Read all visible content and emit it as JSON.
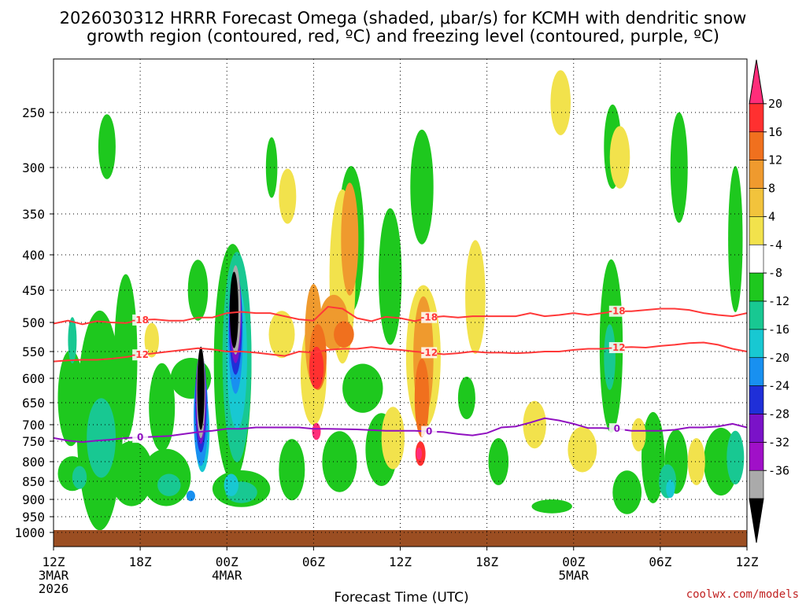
{
  "chart_data": {
    "type": "heatmap",
    "title_line1": "2026030312 HRRR Forecast Omega (shaded, μbar/s) for KCMH with dendritic snow",
    "title_line2": "growth region (contoured, red, ºC) and freezing level (contoured, purple, ºC)",
    "xlabel": "Forecast Time (UTC)",
    "credit": "coolwx.com/models",
    "y_axis": {
      "type": "pressure (hPa)",
      "ticks": [
        250,
        300,
        350,
        400,
        450,
        500,
        550,
        600,
        650,
        700,
        750,
        800,
        850,
        900,
        950,
        1000
      ],
      "tick_labels": [
        "250",
        "300",
        "350",
        "400",
        "450",
        "500",
        "550",
        "600",
        "650",
        "700",
        "750",
        "800",
        "850",
        "900",
        "950",
        "1000"
      ],
      "range": [
        1000,
        200
      ]
    },
    "x_axis": {
      "range_hours": [
        0,
        48
      ],
      "ticks": [
        {
          "hour": 0,
          "label": "12Z",
          "date": "3MAR",
          "year": "2026"
        },
        {
          "hour": 6,
          "label": "18Z",
          "date": "",
          "year": ""
        },
        {
          "hour": 12,
          "label": "00Z",
          "date": "4MAR",
          "year": ""
        },
        {
          "hour": 18,
          "label": "06Z",
          "date": "",
          "year": ""
        },
        {
          "hour": 24,
          "label": "12Z",
          "date": "",
          "year": ""
        },
        {
          "hour": 30,
          "label": "18Z",
          "date": "",
          "year": ""
        },
        {
          "hour": 36,
          "label": "00Z",
          "date": "5MAR",
          "year": ""
        },
        {
          "hour": 42,
          "label": "06Z",
          "date": "",
          "year": ""
        },
        {
          "hour": 48,
          "label": "12Z",
          "date": "",
          "year": ""
        }
      ]
    },
    "colorbar": {
      "labels": [
        "20",
        "16",
        "12",
        "8",
        "4",
        "-4",
        "-8",
        "-12",
        "-16",
        "-20",
        "-24",
        "-28",
        "-32",
        "-36"
      ],
      "colors": [
        "#ff2d7a",
        "#ff3030",
        "#f0701e",
        "#ef9a2e",
        "#f2c33c",
        "#f2e24c",
        "#ffffff",
        "#1ec81e",
        "#18c892",
        "#18c8d2",
        "#1890f0",
        "#1f2fd8",
        "#7a12c8",
        "#a010c8",
        "#aaaaaa",
        "#000000"
      ]
    },
    "contours": [
      {
        "name": "-18 C isotherm",
        "label": "-18",
        "color": "#ff3838",
        "hours": [
          0,
          1,
          2,
          3,
          4,
          5,
          6,
          7,
          8,
          9,
          10,
          11,
          12,
          13,
          14,
          15,
          16,
          17,
          18,
          19,
          20,
          21,
          22,
          23,
          24,
          25,
          26,
          27,
          28,
          29,
          30,
          31,
          32,
          33,
          34,
          35,
          36,
          37,
          38,
          39,
          40,
          41,
          42,
          43,
          44,
          45,
          46,
          47,
          48
        ],
        "pressure": [
          502,
          497,
          503,
          498,
          500,
          501,
          496,
          495,
          497,
          497,
          492,
          492,
          485,
          483,
          485,
          485,
          490,
          495,
          497,
          475,
          478,
          493,
          498,
          491,
          493,
          498,
          492,
          490,
          492,
          490,
          490,
          490,
          490,
          485,
          490,
          488,
          485,
          488,
          485,
          482,
          482,
          480,
          478,
          478,
          480,
          485,
          488,
          490,
          485
        ]
      },
      {
        "name": "-12 C isotherm",
        "label": "-12",
        "color": "#ff3838",
        "hours": [
          0,
          1,
          2,
          3,
          4,
          5,
          6,
          7,
          8,
          9,
          10,
          11,
          12,
          13,
          14,
          15,
          16,
          17,
          18,
          19,
          20,
          21,
          22,
          23,
          24,
          25,
          26,
          27,
          28,
          29,
          30,
          31,
          32,
          33,
          34,
          35,
          36,
          37,
          38,
          39,
          40,
          41,
          42,
          43,
          44,
          45,
          46,
          47,
          48
        ],
        "pressure": [
          568,
          566,
          565,
          565,
          563,
          560,
          556,
          553,
          550,
          547,
          544,
          546,
          550,
          550,
          552,
          555,
          558,
          550,
          552,
          547,
          545,
          545,
          542,
          545,
          547,
          550,
          552,
          555,
          553,
          550,
          552,
          552,
          553,
          552,
          550,
          550,
          547,
          545,
          545,
          543,
          542,
          543,
          540,
          538,
          535,
          534,
          538,
          545,
          550
        ]
      },
      {
        "name": "0 C freezing level",
        "label": "0",
        "color": "#9010c0",
        "hours": [
          0,
          1,
          2,
          3,
          4,
          5,
          6,
          7,
          8,
          9,
          10,
          11,
          12,
          13,
          14,
          15,
          16,
          17,
          18,
          19,
          20,
          21,
          22,
          23,
          24,
          25,
          26,
          27,
          28,
          29,
          30,
          31,
          32,
          33,
          34,
          35,
          36,
          37,
          38,
          39,
          40,
          41,
          42,
          43,
          44,
          45,
          46,
          47,
          48
        ],
        "pressure": [
          740,
          748,
          752,
          748,
          745,
          740,
          738,
          736,
          734,
          728,
          722,
          718,
          712,
          712,
          708,
          708,
          708,
          708,
          712,
          712,
          713,
          714,
          716,
          718,
          718,
          718,
          720,
          722,
          728,
          732,
          725,
          708,
          705,
          695,
          685,
          690,
          698,
          710,
          710,
          712,
          718,
          718,
          718,
          715,
          708,
          708,
          705,
          698,
          708
        ]
      }
    ],
    "shading_blobs": [
      {
        "t": 1.2,
        "p": 640,
        "rt": 0.9,
        "rp": 210,
        "level": -8
      },
      {
        "t": 1.3,
        "p": 830,
        "rt": 1.0,
        "rp": 90,
        "level": -8
      },
      {
        "t": 3.2,
        "p": 690,
        "rt": 1.6,
        "rp": 480,
        "level": -8
      },
      {
        "t": 3.7,
        "p": 280,
        "rt": 0.6,
        "rp": 60,
        "level": -8
      },
      {
        "t": 5.0,
        "p": 560,
        "rt": 0.8,
        "rp": 300,
        "level": -8
      },
      {
        "t": 5.4,
        "p": 830,
        "rt": 1.5,
        "rp": 170,
        "level": -8
      },
      {
        "t": 7.5,
        "p": 660,
        "rt": 0.9,
        "rp": 200,
        "level": -8
      },
      {
        "t": 7.8,
        "p": 840,
        "rt": 1.7,
        "rp": 150,
        "level": -8
      },
      {
        "t": 10.0,
        "p": 450,
        "rt": 0.7,
        "rp": 90,
        "level": -8
      },
      {
        "t": 9.5,
        "p": 600,
        "rt": 1.4,
        "rp": 80,
        "level": -8
      },
      {
        "t": 12.4,
        "p": 570,
        "rt": 1.3,
        "rp": 430,
        "level": -8
      },
      {
        "t": 13.0,
        "p": 870,
        "rt": 2.0,
        "rp": 100,
        "level": -8
      },
      {
        "t": 15.1,
        "p": 300,
        "rt": 0.4,
        "rp": 60,
        "level": -8
      },
      {
        "t": 16.5,
        "p": 820,
        "rt": 0.9,
        "rp": 160,
        "level": -8
      },
      {
        "t": 19.8,
        "p": 800,
        "rt": 1.2,
        "rp": 160,
        "level": -8
      },
      {
        "t": 20.6,
        "p": 380,
        "rt": 0.9,
        "rp": 180,
        "level": -8
      },
      {
        "t": 21.4,
        "p": 620,
        "rt": 1.4,
        "rp": 100,
        "level": -8
      },
      {
        "t": 22.7,
        "p": 770,
        "rt": 1.1,
        "rp": 190,
        "level": -8
      },
      {
        "t": 23.3,
        "p": 430,
        "rt": 0.8,
        "rp": 190,
        "level": -8
      },
      {
        "t": 25.5,
        "p": 320,
        "rt": 0.8,
        "rp": 120,
        "level": -8
      },
      {
        "t": 28.6,
        "p": 640,
        "rt": 0.6,
        "rp": 90,
        "level": -8
      },
      {
        "t": 30.8,
        "p": 800,
        "rt": 0.7,
        "rp": 120,
        "level": -8
      },
      {
        "t": 34.5,
        "p": 920,
        "rt": 1.4,
        "rp": 40,
        "level": -8
      },
      {
        "t": 38.6,
        "p": 540,
        "rt": 0.8,
        "rp": 300,
        "level": -8
      },
      {
        "t": 38.7,
        "p": 280,
        "rt": 0.6,
        "rp": 80,
        "level": -8
      },
      {
        "t": 39.7,
        "p": 880,
        "rt": 1.0,
        "rp": 120,
        "level": -8
      },
      {
        "t": 41.5,
        "p": 790,
        "rt": 0.8,
        "rp": 240,
        "level": -8
      },
      {
        "t": 43.1,
        "p": 800,
        "rt": 0.8,
        "rp": 170,
        "level": -8
      },
      {
        "t": 43.3,
        "p": 300,
        "rt": 0.6,
        "rp": 110,
        "level": -8
      },
      {
        "t": 47.2,
        "p": 380,
        "rt": 0.5,
        "rp": 180,
        "level": -8
      },
      {
        "t": 46.2,
        "p": 800,
        "rt": 1.2,
        "rp": 180,
        "level": -8
      },
      {
        "t": 12.7,
        "p": 560,
        "rt": 1.0,
        "rp": 380,
        "level": -12
      },
      {
        "t": 3.3,
        "p": 740,
        "rt": 1.0,
        "rp": 200,
        "level": -12
      },
      {
        "t": 1.8,
        "p": 840,
        "rt": 0.5,
        "rp": 60,
        "level": -12
      },
      {
        "t": 8.0,
        "p": 860,
        "rt": 0.8,
        "rp": 60,
        "level": -12
      },
      {
        "t": 13.0,
        "p": 880,
        "rt": 1.1,
        "rp": 60,
        "level": -12
      },
      {
        "t": 38.5,
        "p": 560,
        "rt": 0.4,
        "rp": 120,
        "level": -12
      },
      {
        "t": 42.5,
        "p": 850,
        "rt": 0.6,
        "rp": 90,
        "level": -12
      },
      {
        "t": 47.2,
        "p": 790,
        "rt": 0.6,
        "rp": 140,
        "level": -12
      },
      {
        "t": 1.3,
        "p": 530,
        "rt": 0.3,
        "rp": 80,
        "level": -12
      },
      {
        "t": 10.3,
        "p": 720,
        "rt": 0.5,
        "rp": 200,
        "level": -16
      },
      {
        "t": 12.7,
        "p": 560,
        "rt": 0.7,
        "rp": 260,
        "level": -16
      },
      {
        "t": 12.3,
        "p": 860,
        "rt": 0.5,
        "rp": 60,
        "level": -16
      },
      {
        "t": 42.7,
        "p": 870,
        "rt": 0.3,
        "rp": 50,
        "level": -16
      },
      {
        "t": 10.2,
        "p": 680,
        "rt": 0.5,
        "rp": 230,
        "level": -20
      },
      {
        "t": 12.6,
        "p": 520,
        "rt": 0.5,
        "rp": 200,
        "level": -20
      },
      {
        "t": 9.5,
        "p": 890,
        "rt": 0.3,
        "rp": 30,
        "level": -20
      },
      {
        "t": 10.2,
        "p": 650,
        "rt": 0.4,
        "rp": 220,
        "level": -24
      },
      {
        "t": 12.6,
        "p": 500,
        "rt": 0.45,
        "rp": 170,
        "level": -24
      },
      {
        "t": 12.6,
        "p": 490,
        "rt": 0.4,
        "rp": 150,
        "level": -28
      },
      {
        "t": 10.2,
        "p": 640,
        "rt": 0.35,
        "rp": 200,
        "level": -28
      },
      {
        "t": 12.6,
        "p": 480,
        "rt": 0.35,
        "rp": 140,
        "level": -32
      },
      {
        "t": 10.2,
        "p": 630,
        "rt": 0.3,
        "rp": 190,
        "level": -32
      },
      {
        "t": 10.2,
        "p": 620,
        "rt": 0.25,
        "rp": 170,
        "level": -36
      },
      {
        "t": 12.5,
        "p": 480,
        "rt": 0.3,
        "rp": 120,
        "level": -36
      },
      {
        "t": 6.8,
        "p": 530,
        "rt": 0.5,
        "rp": 60,
        "level": 4
      },
      {
        "t": 15.8,
        "p": 520,
        "rt": 0.9,
        "rp": 80,
        "level": 4
      },
      {
        "t": 18.0,
        "p": 590,
        "rt": 0.9,
        "rp": 200,
        "level": 4
      },
      {
        "t": 20.0,
        "p": 430,
        "rt": 0.9,
        "rp": 240,
        "level": 4
      },
      {
        "t": 25.6,
        "p": 560,
        "rt": 1.2,
        "rp": 260,
        "level": 4
      },
      {
        "t": 23.5,
        "p": 740,
        "rt": 0.8,
        "rp": 160,
        "level": 4
      },
      {
        "t": 29.2,
        "p": 460,
        "rt": 0.7,
        "rp": 170,
        "level": 4
      },
      {
        "t": 33.3,
        "p": 700,
        "rt": 0.8,
        "rp": 120,
        "level": 4
      },
      {
        "t": 35.1,
        "p": 240,
        "rt": 0.7,
        "rp": 60,
        "level": 4
      },
      {
        "t": 36.6,
        "p": 770,
        "rt": 1.0,
        "rp": 120,
        "level": 4
      },
      {
        "t": 39.2,
        "p": 290,
        "rt": 0.7,
        "rp": 60,
        "level": 4
      },
      {
        "t": 40.5,
        "p": 730,
        "rt": 0.5,
        "rp": 90,
        "level": 4
      },
      {
        "t": 44.5,
        "p": 800,
        "rt": 0.6,
        "rp": 120,
        "level": 4
      },
      {
        "t": 16.2,
        "p": 330,
        "rt": 0.6,
        "rp": 60,
        "level": 4
      },
      {
        "t": 18.0,
        "p": 520,
        "rt": 0.6,
        "rp": 170,
        "level": 8
      },
      {
        "t": 19.4,
        "p": 500,
        "rt": 1.0,
        "rp": 90,
        "level": 8
      },
      {
        "t": 20.5,
        "p": 380,
        "rt": 0.6,
        "rp": 140,
        "level": 8
      },
      {
        "t": 25.6,
        "p": 560,
        "rt": 0.7,
        "rp": 220,
        "level": 8
      },
      {
        "t": 18.3,
        "p": 560,
        "rt": 0.6,
        "rp": 120,
        "level": 12
      },
      {
        "t": 20.1,
        "p": 520,
        "rt": 0.7,
        "rp": 45,
        "level": 12
      },
      {
        "t": 25.5,
        "p": 640,
        "rt": 0.5,
        "rp": 170,
        "level": 12
      },
      {
        "t": 18.2,
        "p": 580,
        "rt": 0.5,
        "rp": 80,
        "level": 16
      },
      {
        "t": 25.4,
        "p": 780,
        "rt": 0.35,
        "rp": 60,
        "level": 16
      },
      {
        "t": 18.2,
        "p": 720,
        "rt": 0.3,
        "rp": 50,
        "level": 20
      },
      {
        "t": 25.3,
        "p": 780,
        "rt": 0.2,
        "rp": 30,
        "level": 20
      }
    ]
  }
}
